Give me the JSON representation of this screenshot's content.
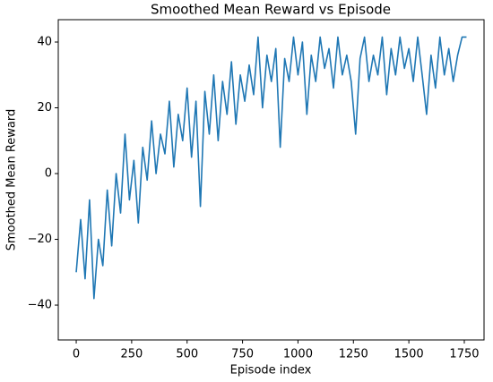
{
  "chart_data": {
    "type": "line",
    "title": "Smoothed Mean Reward vs Episode",
    "xlabel": "Episode index",
    "ylabel": "Smoothed Mean Reward",
    "x": [
      0,
      20,
      40,
      60,
      80,
      100,
      120,
      140,
      160,
      180,
      200,
      220,
      240,
      260,
      280,
      300,
      320,
      340,
      360,
      380,
      400,
      420,
      440,
      460,
      480,
      500,
      520,
      540,
      560,
      580,
      600,
      620,
      640,
      660,
      680,
      700,
      720,
      740,
      760,
      780,
      800,
      820,
      840,
      860,
      880,
      900,
      920,
      940,
      960,
      980,
      1000,
      1020,
      1040,
      1060,
      1080,
      1100,
      1120,
      1140,
      1160,
      1180,
      1200,
      1220,
      1240,
      1260,
      1280,
      1300,
      1320,
      1340,
      1360,
      1380,
      1400,
      1420,
      1440,
      1460,
      1480,
      1500,
      1520,
      1540,
      1560,
      1580,
      1600,
      1620,
      1640,
      1660,
      1680,
      1700,
      1720,
      1740,
      1760
    ],
    "series": [
      {
        "name": "Smoothed Mean Reward",
        "color": "#1f77b4",
        "values": [
          -30,
          -14,
          -32,
          -8,
          -38,
          -20,
          -28,
          -5,
          -22,
          0,
          -12,
          12,
          -8,
          4,
          -15,
          8,
          -2,
          16,
          0,
          12,
          6,
          22,
          2,
          18,
          10,
          26,
          5,
          22,
          -10,
          25,
          12,
          30,
          10,
          28,
          18,
          34,
          15,
          30,
          22,
          33,
          24,
          41.5,
          20,
          36,
          28,
          38,
          8,
          35,
          28,
          41.5,
          30,
          40,
          18,
          36,
          28,
          41.5,
          32,
          38,
          26,
          41.5,
          30,
          36,
          28,
          12,
          35,
          41.5,
          28,
          36,
          30,
          41.5,
          24,
          38,
          30,
          41.5,
          32,
          38,
          28,
          41.5,
          30,
          18,
          36,
          26,
          41.5,
          30,
          38,
          28,
          36,
          41.5,
          41.5
        ]
      }
    ],
    "xlim": [
      -81,
      1839
    ],
    "ylim": [
      -50.6,
      46.8
    ],
    "xticks": [
      0,
      250,
      500,
      750,
      1000,
      1250,
      1500,
      1750
    ],
    "yticks": [
      {
        "value": -40,
        "label": "−40"
      },
      {
        "value": -20,
        "label": "−20"
      },
      0,
      20,
      40
    ]
  }
}
